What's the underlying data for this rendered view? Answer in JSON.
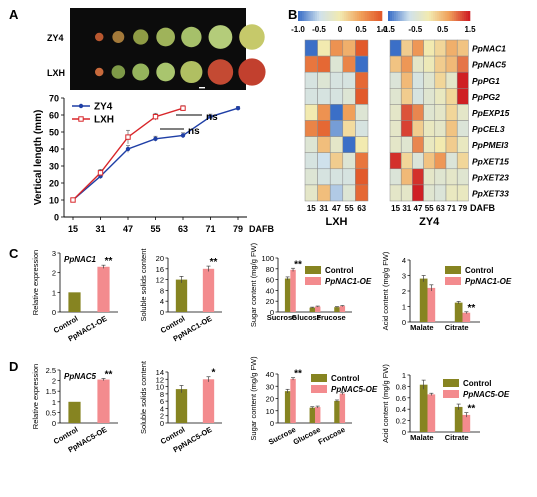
{
  "panel_letters": [
    "A",
    "B",
    "C",
    "D"
  ],
  "fruit_photo": {
    "row_labels": [
      "ZY4",
      "LXH"
    ],
    "colors": {
      "ZY4": [
        "#b8572f",
        "#a47a3a",
        "#8f9c45",
        "#9fb35a",
        "#a6c06a",
        "#b4cc7a",
        "#c6c96a"
      ],
      "LXH": [
        "#c86a3c",
        "#7e9a48",
        "#95b45c",
        "#a9c56e",
        "#b0bf62",
        "#c44a33",
        "#c2402e"
      ]
    }
  },
  "heatmap_scales": [
    {
      "ticks": [
        "-1.0",
        "-0.5",
        "0",
        "0.5",
        "1.0"
      ],
      "colors": [
        "#3b6fc7",
        "#cfe1ec",
        "#f2eab0",
        "#f0a05a",
        "#e25a2b"
      ]
    },
    {
      "ticks": [
        "-1.5",
        "-0.5",
        "0.5",
        "1.5"
      ],
      "colors": [
        "#3b6fc7",
        "#cfe1ec",
        "#f2eab0",
        "#f0a05a",
        "#cf1f24"
      ]
    }
  ],
  "chart_data": [
    {
      "id": "A",
      "type": "line",
      "ylabel": "Vertical length (mm)",
      "xlabel": "DAFB",
      "x": [
        15,
        31,
        47,
        55,
        63,
        71,
        79
      ],
      "ylim": [
        0,
        70
      ],
      "yticks": [
        0,
        10,
        20,
        30,
        40,
        50,
        60,
        70
      ],
      "series": [
        {
          "name": "ZY4",
          "color": "#1f3fa6",
          "values": [
            10,
            24,
            40,
            46,
            48,
            59,
            64
          ],
          "errors": [
            1,
            1.5,
            2,
            1.5,
            1.5,
            1.5,
            1
          ]
        },
        {
          "name": "LXH",
          "color": "#d8262a",
          "values": [
            10,
            26,
            47,
            59,
            64,
            null,
            null
          ],
          "errors": [
            1,
            2,
            4,
            2,
            1.5,
            null,
            null
          ]
        }
      ],
      "annotations": [
        "ns",
        "ns"
      ]
    },
    {
      "id": "B-LXH",
      "type": "heatmap",
      "xlabel": "LXH",
      "x": [
        "15",
        "31",
        "47",
        "55",
        "63"
      ],
      "rows": [
        "PpNAC1",
        "PpNAC5",
        "PpPG1",
        "PpPG2",
        "PpEXP15",
        "PpCEL3",
        "PpPMEI3",
        "PpXET15",
        "PpXET23",
        "PpXET33"
      ],
      "values": [
        [
          -1.0,
          0.0,
          0.6,
          0.4,
          1.0
        ],
        [
          0.8,
          0.9,
          -0.3,
          0.7,
          -1.0
        ],
        [
          -0.4,
          -0.3,
          -0.4,
          -0.4,
          0.9
        ],
        [
          -0.4,
          -0.4,
          -0.4,
          -0.3,
          1.0
        ],
        [
          0.0,
          0.6,
          -1.0,
          0.5,
          -0.3
        ],
        [
          0.7,
          0.9,
          -0.8,
          0.1,
          -0.4
        ],
        [
          -0.3,
          0.3,
          -0.2,
          -1.0,
          0.0
        ],
        [
          -0.4,
          -0.5,
          0.2,
          -0.3,
          0.8
        ],
        [
          -0.3,
          -0.4,
          -0.4,
          -0.4,
          1.0
        ],
        [
          -0.2,
          0.3,
          -0.6,
          -0.3,
          0.9
        ]
      ],
      "vmin": -1.0,
      "vmax": 1.0
    },
    {
      "id": "B-ZY4",
      "type": "heatmap",
      "xlabel": "ZY4",
      "x": [
        "15",
        "31",
        "47",
        "55",
        "63",
        "71",
        "79"
      ],
      "rows": [
        "PpNAC1",
        "PpNAC5",
        "PpPG1",
        "PpPG2",
        "PpEXP15",
        "PpCEL3",
        "PpPMEI3",
        "PpXET15",
        "PpXET23",
        "PpXET33"
      ],
      "values": [
        [
          -1.5,
          0.3,
          0.8,
          0.0,
          0.2,
          0.6,
          0.4
        ],
        [
          0.4,
          0.8,
          -0.3,
          -0.1,
          0.3,
          0.5,
          1.0
        ],
        [
          -0.5,
          0.5,
          -0.6,
          -0.4,
          0.2,
          -0.3,
          1.5
        ],
        [
          -0.4,
          0.3,
          -0.6,
          -0.4,
          -0.2,
          0.2,
          1.5
        ],
        [
          -0.3,
          1.2,
          0.9,
          -0.4,
          -0.3,
          0.2,
          -0.3
        ],
        [
          -0.3,
          1.3,
          0.3,
          -0.2,
          -0.3,
          0.4,
          -0.5
        ],
        [
          -0.3,
          -0.4,
          0.9,
          -0.2,
          0.0,
          0.3,
          -0.2
        ],
        [
          1.4,
          0.2,
          -0.5,
          0.4,
          0.8,
          -0.5,
          0.2
        ],
        [
          -0.5,
          0.5,
          1.4,
          -0.3,
          -0.4,
          -0.3,
          -0.4
        ],
        [
          -0.3,
          -0.3,
          1.5,
          -0.4,
          -0.5,
          -0.2,
          -0.2
        ]
      ],
      "vmin": -1.5,
      "vmax": 1.5
    },
    {
      "id": "C1",
      "type": "bar",
      "ylabel": "Relative expression",
      "title": "PpNAC1",
      "categories": [
        "Control",
        "PpNAC1-OE"
      ],
      "values": [
        1.0,
        2.3
      ],
      "errors": [
        0,
        0.08
      ],
      "colors": [
        "#868421",
        "#f38b8e"
      ],
      "ylim": [
        0,
        3
      ],
      "yticks": [
        0,
        1,
        2,
        3
      ],
      "sig": [
        "",
        "**"
      ]
    },
    {
      "id": "C2",
      "type": "bar",
      "ylabel": "Soluble solids content",
      "categories": [
        "Control",
        "PpNAC1-OE"
      ],
      "values": [
        12.0,
        16.0
      ],
      "errors": [
        1.2,
        1.0
      ],
      "colors": [
        "#868421",
        "#f38b8e"
      ],
      "ylim": [
        0,
        20
      ],
      "yticks": [
        0,
        4,
        8,
        12,
        16,
        20
      ],
      "sig": [
        "",
        "**"
      ]
    },
    {
      "id": "C3",
      "type": "bar",
      "ylabel": "Sugar content (mg/g FW)",
      "categories": [
        "Sucrose",
        "Glucose",
        "Frucose"
      ],
      "series": [
        {
          "name": "Control",
          "color": "#868421",
          "values": [
            62,
            8,
            9
          ],
          "errors": [
            3,
            1,
            1
          ]
        },
        {
          "name": "PpNAC1-OE",
          "color": "#f38b8e",
          "values": [
            78,
            10,
            11
          ],
          "errors": [
            3,
            1,
            1
          ]
        }
      ],
      "ylim": [
        0,
        100
      ],
      "yticks": [
        0,
        20,
        40,
        60,
        80,
        100
      ],
      "sig": [
        "**",
        "",
        ""
      ]
    },
    {
      "id": "C4",
      "type": "bar",
      "ylabel": "Acid content (mg/g FW)",
      "categories": [
        "Malate",
        "Citrate"
      ],
      "series": [
        {
          "name": "Control",
          "color": "#868421",
          "values": [
            2.8,
            1.25
          ],
          "errors": [
            0.2,
            0.08
          ]
        },
        {
          "name": "PpNAC1-OE",
          "color": "#f38b8e",
          "values": [
            2.2,
            0.6
          ],
          "errors": [
            0.2,
            0.06
          ]
        }
      ],
      "ylim": [
        0,
        4
      ],
      "yticks": [
        0,
        1,
        2,
        3,
        4
      ],
      "sig": [
        "",
        "**"
      ]
    },
    {
      "id": "D1",
      "type": "bar",
      "ylabel": "Relative expression",
      "title": "PpNAC5",
      "categories": [
        "Control",
        "PpNAC5-OE"
      ],
      "values": [
        1.0,
        2.05
      ],
      "errors": [
        0,
        0.05
      ],
      "colors": [
        "#868421",
        "#f38b8e"
      ],
      "ylim": [
        0,
        2.5
      ],
      "yticks": [
        0,
        0.5,
        1,
        1.5,
        2,
        2.5
      ],
      "sig": [
        "",
        "**"
      ]
    },
    {
      "id": "D2",
      "type": "bar",
      "ylabel": "Soluble solids content",
      "categories": [
        "Control",
        "PpNAC5-OE"
      ],
      "values": [
        9.3,
        12.0
      ],
      "errors": [
        1.0,
        0.7
      ],
      "colors": [
        "#868421",
        "#f38b8e"
      ],
      "ylim": [
        0,
        14
      ],
      "yticks": [
        0,
        2,
        4,
        6,
        8,
        10,
        12,
        14
      ],
      "sig": [
        "",
        "*"
      ]
    },
    {
      "id": "D3",
      "type": "bar",
      "ylabel": "Sugar content (mg/g FW)",
      "categories": [
        "Sucrose",
        "Glucose",
        "Frucose"
      ],
      "series": [
        {
          "name": "Control",
          "color": "#868421",
          "values": [
            26,
            12.5,
            18
          ],
          "errors": [
            1.5,
            0.8,
            0.8
          ]
        },
        {
          "name": "PpNAC5-OE",
          "color": "#f38b8e",
          "values": [
            36,
            13,
            24
          ],
          "errors": [
            1,
            0.8,
            0.8
          ]
        }
      ],
      "ylim": [
        0,
        40
      ],
      "yticks": [
        0,
        10,
        20,
        30,
        40
      ],
      "sig": [
        "**",
        "",
        ""
      ]
    },
    {
      "id": "D4",
      "type": "bar",
      "ylabel": "Acid content (mg/g FW)",
      "categories": [
        "Malate",
        "Citrate"
      ],
      "series": [
        {
          "name": "Control",
          "color": "#868421",
          "values": [
            0.83,
            0.44
          ],
          "errors": [
            0.08,
            0.05
          ]
        },
        {
          "name": "PpNAC5-OE",
          "color": "#f38b8e",
          "values": [
            0.66,
            0.3
          ],
          "errors": [
            0.02,
            0.04
          ]
        }
      ],
      "ylim": [
        0,
        1
      ],
      "yticks": [
        0,
        0.2,
        0.4,
        0.6,
        0.8,
        1
      ],
      "sig": [
        "",
        "**"
      ]
    }
  ]
}
